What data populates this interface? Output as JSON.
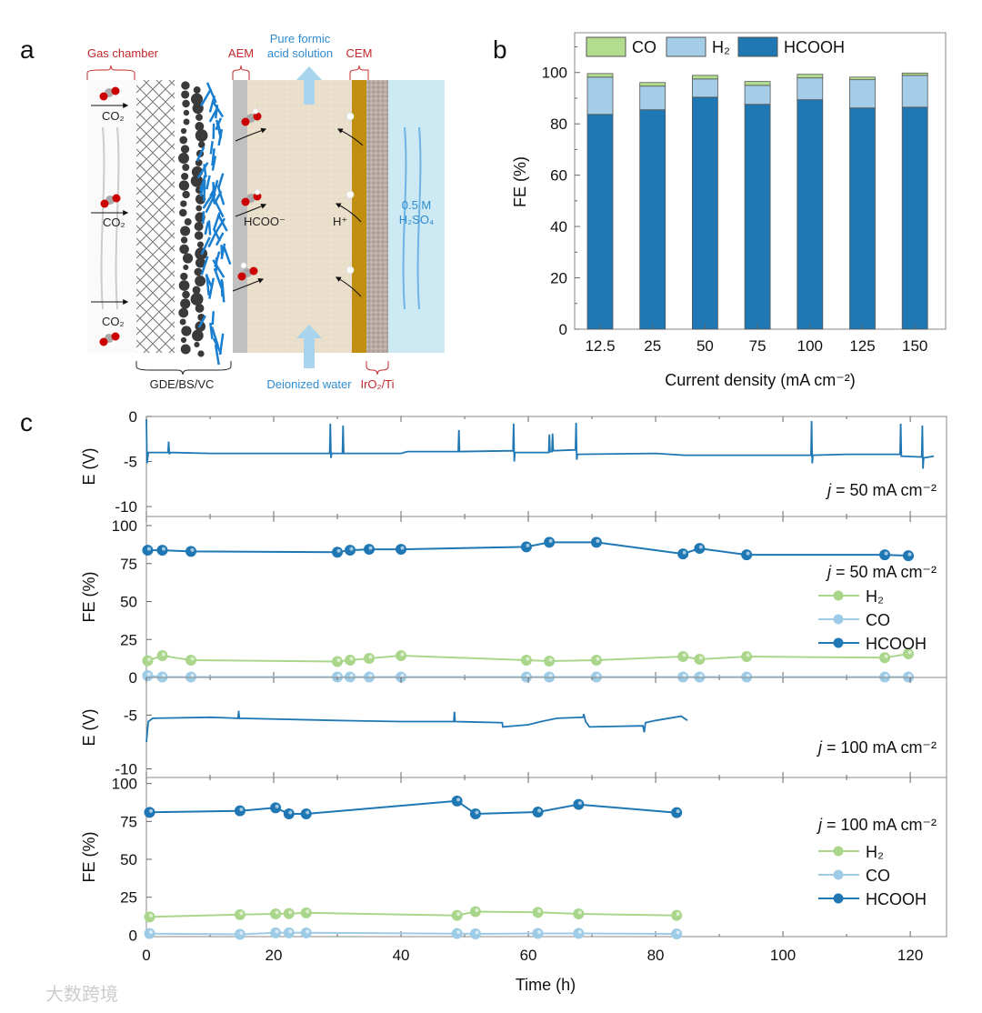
{
  "panel_labels": {
    "a": "a",
    "b": "b",
    "c": "c"
  },
  "schematic": {
    "gas_chamber": "Gas chamber",
    "aem": "AEM",
    "pure_formic_1": "Pure formic",
    "pure_formic_2": "acid solution",
    "cem": "CEM",
    "co2": "CO₂",
    "hcoo": "HCOO⁻",
    "h_plus": "H⁺",
    "electrolyte_1": "0.5 M",
    "electrolyte_2": "H₂SO₄",
    "gde": "GDE/BS/VC",
    "deionized": "Deionized water",
    "anode": "IrO₂/Ti"
  },
  "watermark": "大数跨境",
  "colors": {
    "hcooh": "#1f77b4",
    "h2": "#a6cde8",
    "co": "#b2dc8e",
    "h2_line": "#a9d68a",
    "co_line": "#9ecbe6"
  },
  "chart_data": [
    {
      "id": "b",
      "type": "bar",
      "stacked": true,
      "categories": [
        "12.5",
        "25",
        "50",
        "75",
        "100",
        "125",
        "150"
      ],
      "series": [
        {
          "name": "HCOOH",
          "values": [
            83.7,
            85.5,
            90.4,
            87.6,
            89.4,
            86.2,
            86.5
          ]
        },
        {
          "name": "H₂",
          "values": [
            14.5,
            9.2,
            7.1,
            7.4,
            8.5,
            11.0,
            12.4
          ]
        },
        {
          "name": "CO",
          "values": [
            1.4,
            1.4,
            1.4,
            1.5,
            1.4,
            1.0,
            0.9
          ]
        }
      ],
      "legend_order": [
        "CO",
        "H₂",
        "HCOOH"
      ],
      "legend": "top",
      "xlabel": "Current density (mA cm⁻²)",
      "ylabel": "FE (%)",
      "ylim": [
        0,
        115.5
      ],
      "yticks": [
        "0",
        "20",
        "40",
        "60",
        "80",
        "100"
      ]
    },
    {
      "id": "c1",
      "type": "line",
      "ylabel": "E (V)",
      "ylim": [
        -11.1,
        0
      ],
      "yticks": [
        "0",
        "-5",
        "-10"
      ],
      "annotation": {
        "var": "j",
        "text": " = 50 mA cm⁻²"
      },
      "series": [
        {
          "name": "E",
          "points": [
            [
              0,
              -0.3
            ],
            [
              0.1,
              -5.2
            ],
            [
              0.3,
              -4.0
            ],
            [
              3.4,
              -4.0
            ],
            [
              3.5,
              -2.8
            ],
            [
              3.6,
              -4.2
            ],
            [
              3.7,
              -4.0
            ],
            [
              10,
              -4.1
            ],
            [
              28.8,
              -4.1
            ],
            [
              28.9,
              -0.8
            ],
            [
              29,
              -4.6
            ],
            [
              29.1,
              -4.1
            ],
            [
              30.8,
              -4.1
            ],
            [
              30.9,
              -1.0
            ],
            [
              31,
              -4.1
            ],
            [
              40,
              -4.1
            ],
            [
              41,
              -3.9
            ],
            [
              49,
              -3.9
            ],
            [
              49.1,
              -1.5
            ],
            [
              49.2,
              -3.9
            ],
            [
              57.6,
              -3.8
            ],
            [
              57.7,
              -0.8
            ],
            [
              57.8,
              -5.0
            ],
            [
              57.9,
              -4.0
            ],
            [
              63.2,
              -4.0
            ],
            [
              63.3,
              -2.0
            ],
            [
              63.4,
              -3.9
            ],
            [
              63.7,
              -3.9
            ],
            [
              63.8,
              -1.9
            ],
            [
              63.9,
              -3.8
            ],
            [
              67.4,
              -3.7
            ],
            [
              67.5,
              -0.7
            ],
            [
              67.6,
              -4.8
            ],
            [
              67.7,
              -4.2
            ],
            [
              80,
              -4.1
            ],
            [
              84.5,
              -4.3
            ],
            [
              104.4,
              -4.3
            ],
            [
              104.5,
              -0.5
            ],
            [
              104.6,
              -5.2
            ],
            [
              104.7,
              -4.3
            ],
            [
              110,
              -4.2
            ],
            [
              118.4,
              -4.2
            ],
            [
              118.5,
              -0.8
            ],
            [
              118.6,
              -4.4
            ],
            [
              121.8,
              -4.5
            ],
            [
              121.9,
              -1.0
            ],
            [
              122,
              -5.8
            ],
            [
              122.1,
              -4.6
            ],
            [
              123.7,
              -4.4
            ]
          ]
        }
      ]
    },
    {
      "id": "c2",
      "type": "line",
      "ylabel": "FE (%)",
      "ylim": [
        0,
        106
      ],
      "yticks": [
        "0",
        "25",
        "50",
        "75",
        "100"
      ],
      "annotation": {
        "var": "j",
        "text": " = 50 mA cm⁻²"
      },
      "x": [
        0.2,
        2.5,
        7,
        30,
        32,
        35,
        40,
        59.7,
        63.3,
        70.7,
        84.3,
        86.9,
        94.3,
        116,
        119.7
      ],
      "series": [
        {
          "name": "H₂",
          "values": [
            11,
            14.4,
            11.4,
            10.5,
            11.4,
            12.6,
            14.4,
            11.4,
            10.8,
            11.4,
            13.8,
            12,
            13.8,
            13,
            15.6
          ]
        },
        {
          "name": "CO",
          "values": [
            1.2,
            0.3,
            0.3,
            0.3,
            0.3,
            0.3,
            0.3,
            0.3,
            0.3,
            0.3,
            0.3,
            0.3,
            0.3,
            0.3,
            0.3
          ]
        },
        {
          "name": "HCOOH",
          "values": [
            83.8,
            83.8,
            83,
            82.5,
            83.8,
            84.4,
            84.4,
            86,
            89,
            89,
            81.4,
            85,
            80.8,
            80.8,
            80.2
          ]
        }
      ]
    },
    {
      "id": "c3",
      "type": "line",
      "ylabel": "E (V)",
      "ylim": [
        -10.8,
        -1.5
      ],
      "yticks": [
        "-5",
        "-10"
      ],
      "annotation": {
        "var": "j",
        "text": " = 100 mA cm⁻²"
      },
      "series": [
        {
          "name": "E",
          "points": [
            [
              0,
              -7.5
            ],
            [
              0.3,
              -5.6
            ],
            [
              1,
              -5.3
            ],
            [
              10,
              -5.2
            ],
            [
              14.4,
              -5.3
            ],
            [
              14.5,
              -4.6
            ],
            [
              14.6,
              -5.3
            ],
            [
              30,
              -5.5
            ],
            [
              40,
              -5.6
            ],
            [
              48.3,
              -5.6
            ],
            [
              48.4,
              -4.7
            ],
            [
              48.5,
              -5.6
            ],
            [
              55.9,
              -5.7
            ],
            [
              56,
              -6.1
            ],
            [
              60,
              -5.9
            ],
            [
              62,
              -5.6
            ],
            [
              64.5,
              -5.3
            ],
            [
              68.6,
              -5.2
            ],
            [
              68.7,
              -4.9
            ],
            [
              69,
              -5.6
            ],
            [
              69.6,
              -6.1
            ],
            [
              78,
              -6.0
            ],
            [
              78.2,
              -6.6
            ],
            [
              78.4,
              -5.7
            ],
            [
              80,
              -5.5
            ],
            [
              83,
              -5.2
            ],
            [
              84,
              -5.1
            ],
            [
              85,
              -5.5
            ]
          ]
        }
      ]
    },
    {
      "id": "c4",
      "type": "line",
      "ylabel": "FE (%)",
      "xlabel": "Time (h)",
      "xlim": [
        0,
        125.7
      ],
      "xticks": [
        "0",
        "20",
        "40",
        "60",
        "80",
        "100",
        "120"
      ],
      "ylim": [
        -1,
        104
      ],
      "yticks": [
        "0",
        "25",
        "50",
        "75",
        "100"
      ],
      "annotation": {
        "var": "j",
        "text": " = 100 mA cm⁻²"
      },
      "x": [
        0.5,
        14.7,
        20.3,
        22.4,
        25.1,
        48.8,
        51.7,
        61.5,
        67.9,
        83.3
      ],
      "series": [
        {
          "name": "H₂",
          "values": [
            12,
            13.5,
            14,
            14.2,
            14.7,
            13,
            15.5,
            15,
            14,
            13
          ]
        },
        {
          "name": "CO",
          "values": [
            1,
            0.5,
            1.5,
            1.5,
            1.5,
            1,
            0.8,
            1.1,
            1.1,
            0.8
          ]
        },
        {
          "name": "HCOOH",
          "values": [
            81,
            82,
            84,
            80,
            80,
            88.5,
            80,
            81.2,
            86.2,
            80.8
          ]
        }
      ]
    }
  ]
}
